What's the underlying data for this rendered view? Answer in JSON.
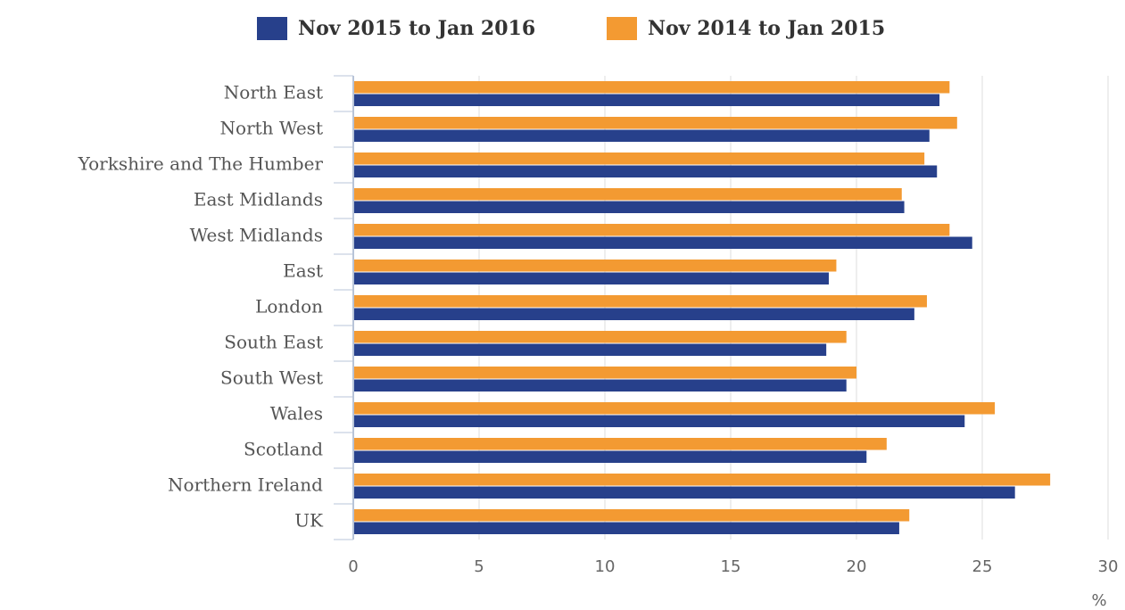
{
  "chart_data": {
    "type": "hbar",
    "categories": [
      "North East",
      "North West",
      "Yorkshire and The Humber",
      "East Midlands",
      "West Midlands",
      "East",
      "London",
      "South East",
      "South West",
      "Wales",
      "Scotland",
      "Northern Ireland",
      "UK"
    ],
    "series": [
      {
        "name": "Nov 2015 to Jan 2016",
        "color": "#27408b",
        "values": [
          23.3,
          22.9,
          23.2,
          21.9,
          24.6,
          18.9,
          22.3,
          18.8,
          19.6,
          24.3,
          20.4,
          26.3,
          21.7
        ]
      },
      {
        "name": "Nov 2014 to Jan 2015",
        "color": "#f39a32",
        "values": [
          23.7,
          24.0,
          22.7,
          21.8,
          23.7,
          19.2,
          22.8,
          19.6,
          20.0,
          25.5,
          21.2,
          27.7,
          22.1
        ]
      }
    ],
    "xlabel": "%",
    "xlim": [
      0,
      30
    ],
    "xticks": [
      0,
      5,
      10,
      15,
      20,
      25,
      30
    ],
    "grid": true
  }
}
